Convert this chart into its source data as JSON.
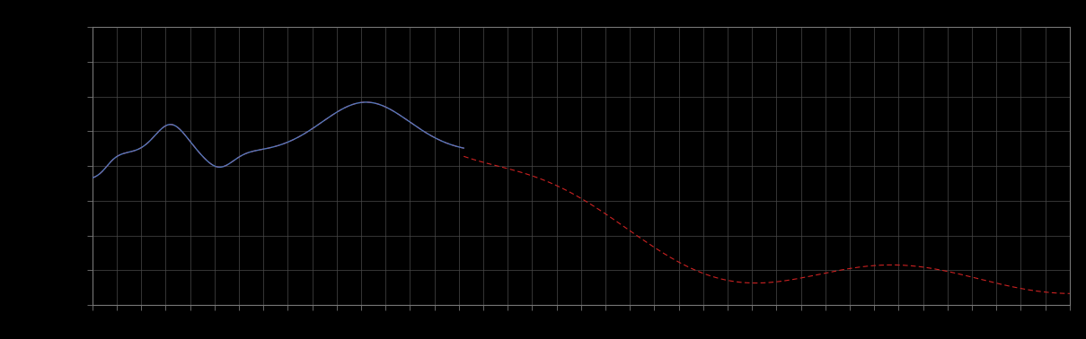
{
  "background_color": "#000000",
  "plot_bg_color": "#000000",
  "grid_color": "#4a4a4a",
  "line1_color": "#5577bb",
  "line2_color": "#cc2222",
  "xlim": [
    0,
    100
  ],
  "ylim": [
    0,
    10
  ],
  "figsize": [
    12.09,
    3.78
  ],
  "dpi": 100,
  "spine_color": "#777777",
  "tick_color": "#777777",
  "n_xticks": 41,
  "n_yticks": 9
}
